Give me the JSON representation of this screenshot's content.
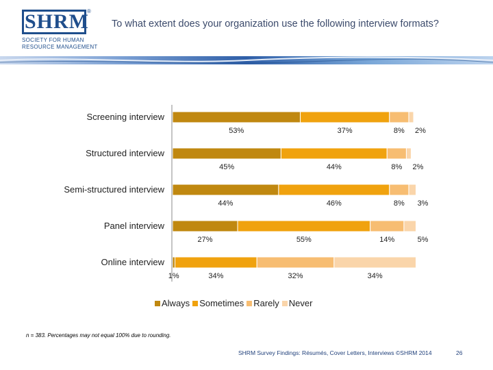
{
  "header": {
    "logo_text": "SHRM",
    "logo_sub1": "SOCIETY FOR HUMAN",
    "logo_sub2": "RESOURCE MANAGEMENT",
    "title": "To what extent does your organization use the following interview formats?"
  },
  "chart_data": {
    "type": "bar",
    "orientation": "horizontal",
    "stacked": true,
    "categories": [
      "Screening interview",
      "Structured interview",
      "Semi-structured interview",
      "Panel interview",
      "Online interview"
    ],
    "series": [
      {
        "name": "Always",
        "values": [
          53,
          45,
          44,
          27,
          1
        ],
        "labels": [
          "53%",
          "45%",
          "44%",
          "27%",
          "1%"
        ],
        "color": "#c08810"
      },
      {
        "name": "Sometimes",
        "values": [
          37,
          44,
          46,
          55,
          34
        ],
        "labels": [
          "37%",
          "44%",
          "46%",
          "55%",
          "34%"
        ],
        "color": "#f0a20e"
      },
      {
        "name": "Rarely",
        "values": [
          8,
          8,
          8,
          14,
          32
        ],
        "labels": [
          "8%",
          "8%",
          "8%",
          "14%",
          "32%"
        ],
        "color": "#f7bd72"
      },
      {
        "name": "Never",
        "values": [
          2,
          2,
          3,
          5,
          34
        ],
        "labels": [
          "2%",
          "2%",
          "3%",
          "5%",
          "34%"
        ],
        "color": "#fad5aa"
      }
    ],
    "xlim": [
      0,
      100
    ],
    "legend_position": "bottom",
    "grid": false
  },
  "footnote": "n = 383. Percentages may not equal 100% due to rounding.",
  "footer": {
    "source": "SHRM Survey Findings: Résumés, Cover Letters, Interviews ©SHRM 2014",
    "page": "26"
  }
}
